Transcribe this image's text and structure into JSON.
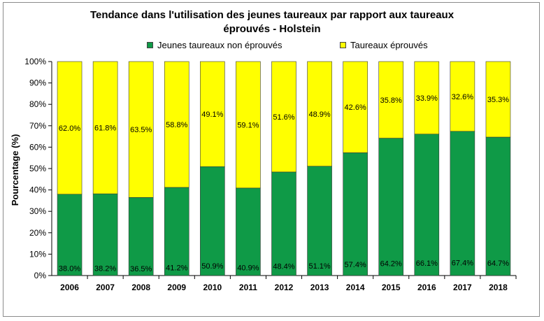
{
  "chart_data": {
    "type": "bar",
    "stacked": true,
    "percent_stacked": true,
    "title_lines": [
      "Tendance dans l'utilisation des jeunes taureaux par rapport aux taureaux",
      "éprouvés - Holstein"
    ],
    "ylabel": "Pourcentage (%)",
    "xlabel": "",
    "ylim": [
      0,
      100
    ],
    "yticks": [
      "0%",
      "10%",
      "20%",
      "30%",
      "40%",
      "50%",
      "60%",
      "70%",
      "80%",
      "90%",
      "100%"
    ],
    "legend_position": "top",
    "categories": [
      "2006",
      "2007",
      "2008",
      "2009",
      "2010",
      "2011",
      "2012",
      "2013",
      "2014",
      "2015",
      "2016",
      "2017",
      "2018"
    ],
    "series": [
      {
        "name": "Jeunes taureaux non éprouvés",
        "color": "#0f9a47",
        "values": [
          38.0,
          38.2,
          36.5,
          41.2,
          50.9,
          40.9,
          48.4,
          51.1,
          57.4,
          64.2,
          66.1,
          67.4,
          64.7
        ],
        "labels": [
          "38.0%",
          "38.2%",
          "36.5%",
          "41.2%",
          "50.9%",
          "40.9%",
          "48.4%",
          "51.1%",
          "57.4%",
          "64.2%",
          "66.1%",
          "67.4%",
          "64.7%"
        ]
      },
      {
        "name": "Taureaux éprouvés",
        "color": "#ffff00",
        "values": [
          62.0,
          61.8,
          63.5,
          58.8,
          49.1,
          59.1,
          51.6,
          48.9,
          42.6,
          35.8,
          33.9,
          32.6,
          35.3
        ],
        "labels": [
          "62.0%",
          "61.8%",
          "63.5%",
          "58.8%",
          "49.1%",
          "59.1%",
          "51.6%",
          "48.9%",
          "42.6%",
          "35.8%",
          "33.9%",
          "32.6%",
          "35.3%"
        ]
      }
    ],
    "grid": false
  }
}
